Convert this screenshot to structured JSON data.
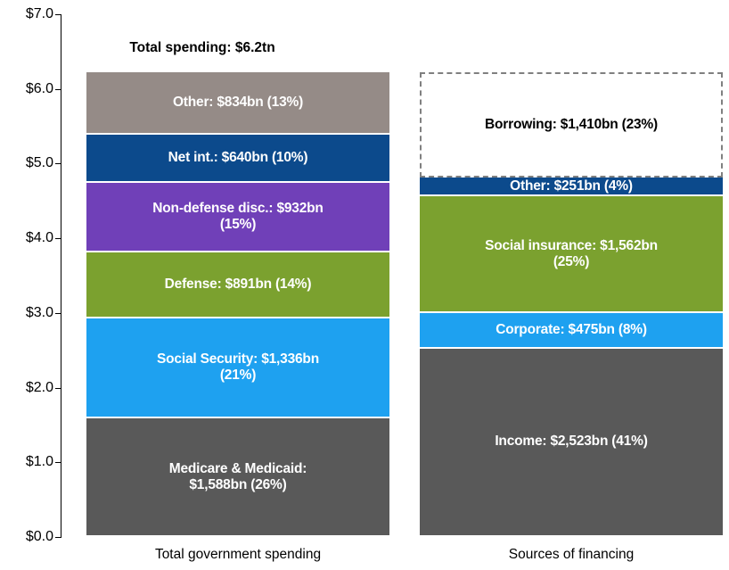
{
  "chart_data": {
    "type": "stacked_bar",
    "categories": [
      "Total government spending",
      "Sources of financing"
    ],
    "ylim": [
      0,
      7
    ],
    "yticks": [
      {
        "value": 0,
        "label": "$0.0"
      },
      {
        "value": 1,
        "label": "$1.0"
      },
      {
        "value": 2,
        "label": "$2.0"
      },
      {
        "value": 3,
        "label": "$3.0"
      },
      {
        "value": 4,
        "label": "$4.0"
      },
      {
        "value": 5,
        "label": "$5.0"
      },
      {
        "value": 6,
        "label": "$6.0"
      },
      {
        "value": 7,
        "label": "$7.0"
      }
    ],
    "annotations": [
      {
        "text": "Total spending: $6.2tn",
        "category": 0
      }
    ],
    "series": [
      {
        "color": "#595959",
        "values": [
          1.588,
          null
        ],
        "value_labels": [
          "Medicare & Medicaid: $1,588bn (26%)",
          null
        ]
      },
      {
        "color": "#1ea1f0",
        "values": [
          1.336,
          null
        ],
        "value_labels": [
          "Social Security: $1,336bn (21%)",
          null
        ]
      },
      {
        "color": "#7ba12f",
        "values": [
          0.891,
          null
        ],
        "value_labels": [
          "Defense: $891bn (14%)",
          null
        ]
      },
      {
        "color": "#7040b8",
        "values": [
          0.932,
          null
        ],
        "value_labels": [
          "Non-defense disc.: $932bn (15%)",
          null
        ]
      },
      {
        "color": "#0c4a8c",
        "values": [
          0.64,
          null
        ],
        "value_labels": [
          "Net int.: $640bn (10%)",
          null
        ]
      },
      {
        "color": "#958b87",
        "values": [
          0.834,
          null
        ],
        "value_labels": [
          "Other: $834bn (13%)",
          null
        ]
      },
      {
        "color": "#595959",
        "values": [
          null,
          2.523
        ],
        "value_labels": [
          null,
          "Income: $2,523bn (41%)"
        ]
      },
      {
        "color": "#1ea1f0",
        "values": [
          null,
          0.475
        ],
        "value_labels": [
          null,
          "Corporate: $475bn (8%)"
        ]
      },
      {
        "color": "#7ba12f",
        "values": [
          null,
          1.562
        ],
        "value_labels": [
          null,
          "Social insurance: $1,562bn (25%)"
        ]
      },
      {
        "color": "#0c4a8c",
        "values": [
          null,
          0.251
        ],
        "value_labels": [
          null,
          "Other: $251bn (4%)"
        ]
      },
      {
        "color": "#ffffff",
        "label_color": "#000000",
        "border": "dashed",
        "values": [
          null,
          1.41
        ],
        "value_labels": [
          null,
          "Borrowing: $1,410bn (23%)"
        ]
      }
    ]
  }
}
